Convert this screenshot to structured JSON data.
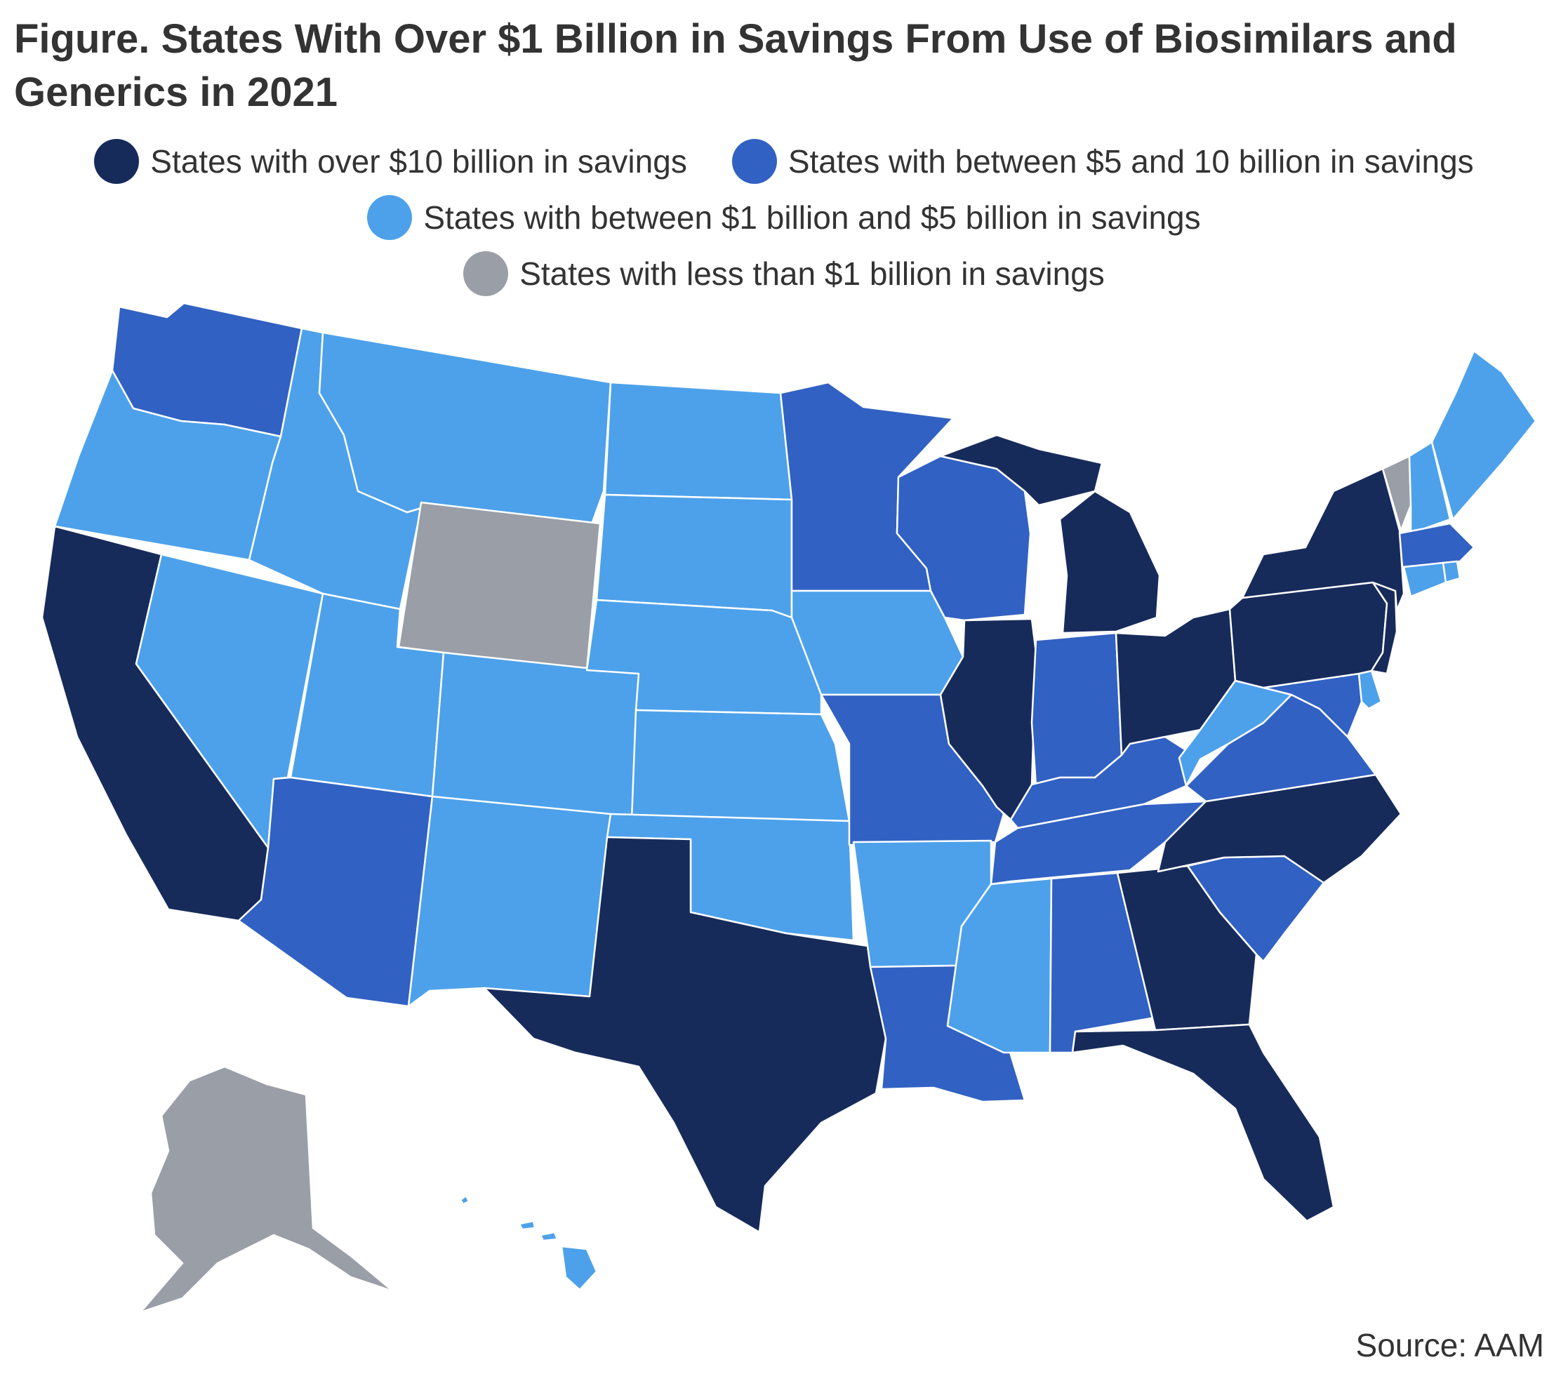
{
  "title": "Figure. States With Over $1 Billion in Savings From Use of Biosimilars and Generics in 2021",
  "legend": [
    {
      "key": "t10",
      "label": "States with over $10 billion in savings",
      "color": "#172b5b"
    },
    {
      "key": "t5",
      "label": "States with between $5 and 10 billion in savings",
      "color": "#3161c2"
    },
    {
      "key": "t1",
      "label": "States with between $1 billion and $5 billion in savings",
      "color": "#4da1ea"
    },
    {
      "key": "t0",
      "label": "States with less than $1 billion in savings",
      "color": "#9a9ea6"
    }
  ],
  "states": {
    "WA": "t5",
    "OR": "t1",
    "CA": "t10",
    "ID": "t1",
    "NV": "t1",
    "MT": "t1",
    "WY": "t0",
    "UT": "t1",
    "AZ": "t5",
    "CO": "t1",
    "NM": "t1",
    "ND": "t1",
    "SD": "t1",
    "NE": "t1",
    "KS": "t1",
    "OK": "t1",
    "TX": "t10",
    "MN": "t5",
    "IA": "t1",
    "MO": "t5",
    "AR": "t1",
    "LA": "t5",
    "WI": "t5",
    "IL": "t10",
    "MI": "t10",
    "IN": "t5",
    "OH": "t10",
    "KY": "t5",
    "TN": "t5",
    "MS": "t1",
    "AL": "t5",
    "GA": "t10",
    "FL": "t10",
    "SC": "t5",
    "NC": "t10",
    "VA": "t5",
    "WV": "t1",
    "MD": "t5",
    "DE": "t1",
    "PA": "t10",
    "NJ": "t10",
    "NY": "t10",
    "CT": "t1",
    "RI": "t1",
    "MA": "t5",
    "VT": "t0",
    "NH": "t1",
    "ME": "t1",
    "AK": "t0",
    "HI": "t1"
  },
  "source": "Source: AAM"
}
